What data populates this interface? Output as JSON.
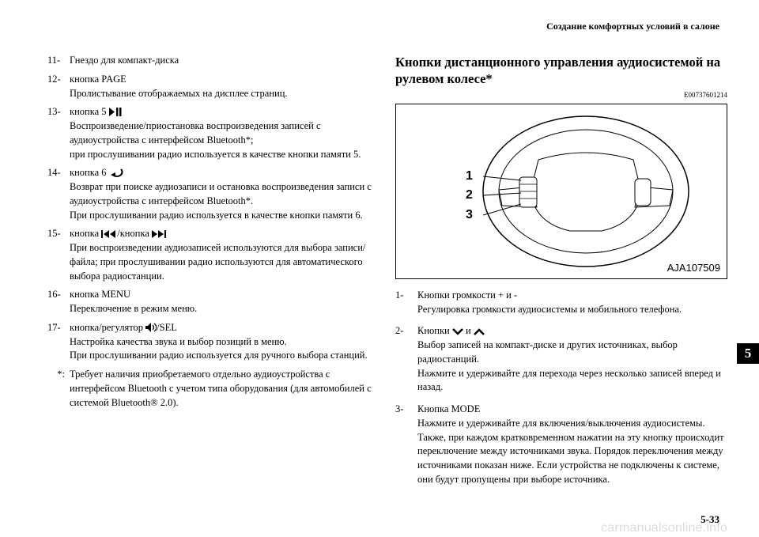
{
  "header": {
    "running_title": "Создание комфортных условий в салоне"
  },
  "left_column": {
    "items": [
      {
        "num": "11-",
        "text": "Гнездо для компакт-диска"
      },
      {
        "num": "12-",
        "text": "кнопка PAGE\nПролистывание отображаемых на дисплее страниц."
      },
      {
        "num": "13-",
        "icon": "play-pause",
        "text_before": "кнопка 5 ",
        "text_after": "\nВоспроизведение/приостановка воспроизведения записей с аудиоустройства с интерфейсом Bluetooth*;\nпри прослушивании радио используется в качестве кнопки памяти 5."
      },
      {
        "num": "14-",
        "icon": "return",
        "text_before": "кнопка 6 ",
        "text_after": "\nВозврат при поиске аудиозаписи и остановка воспроизведения записи с аудиоустройства с интерфейсом Bluetooth*.\nПри прослушивании радио используется в качестве кнопки памяти 6."
      },
      {
        "num": "15-",
        "icon": "seek",
        "text_before": "кнопка ",
        "text_mid": "/кнопка ",
        "text_after": "\nПри воспроизведении аудиозаписей используются для выбора записи/файла; при прослушивании радио используются для автоматического выбора радиостанции."
      },
      {
        "num": "16-",
        "text": "кнопка MENU\nПереключение в режим меню."
      },
      {
        "num": "17-",
        "icon": "vol",
        "text_before": "кнопка/регулятор ",
        "text_after": "/SEL\nНастройка качества звука и выбор позиций в меню.\nПри прослушивании радио используется для ручного выбора станций."
      }
    ],
    "footnote": {
      "mark": "*:",
      "text": "Требует наличия приобретаемого отдельно аудиоустройства с интерфейсом Bluetooth с учетом типа оборудования (для автомобилей с системой Bluetooth® 2.0)."
    }
  },
  "right_column": {
    "heading": "Кнопки дистанционного управления аудиосистемой на рулевом колесе*",
    "code": "E00737601214",
    "figure": {
      "labels": [
        "1",
        "2",
        "3"
      ],
      "caption": "AJA107509",
      "label_font_size": 16
    },
    "items": [
      {
        "num": "1-",
        "text": "Кнопки громкости + и -\nРегулировка громкости аудиосистемы и мобильного телефона."
      },
      {
        "num": "2-",
        "icon": "updown",
        "text_before": "Кнопки ",
        "text_mid": " и ",
        "text_after": "\nВыбор записей на компакт-диске и других источниках, выбор радиостанций.\nНажмите и удерживайте для перехода через несколько записей вперед и назад."
      },
      {
        "num": "3-",
        "text": "Кнопка MODE\nНажмите и удерживайте для включения/выключения аудиосистемы. Также, при каждом кратковременном нажатии на эту кнопку происходит переключение между источниками звука. Порядок переключения между источниками показан ниже. Если устройства не подключены к системе, они будут пропущены при выборе источника."
      }
    ]
  },
  "chapter_tab": "5",
  "page_number": "5-33",
  "watermark": "carmanualsonline.info",
  "colors": {
    "text": "#000000",
    "bg": "#ffffff",
    "tab_bg": "#000000",
    "tab_fg": "#ffffff",
    "watermark": "rgba(0,0,0,0.14)"
  }
}
